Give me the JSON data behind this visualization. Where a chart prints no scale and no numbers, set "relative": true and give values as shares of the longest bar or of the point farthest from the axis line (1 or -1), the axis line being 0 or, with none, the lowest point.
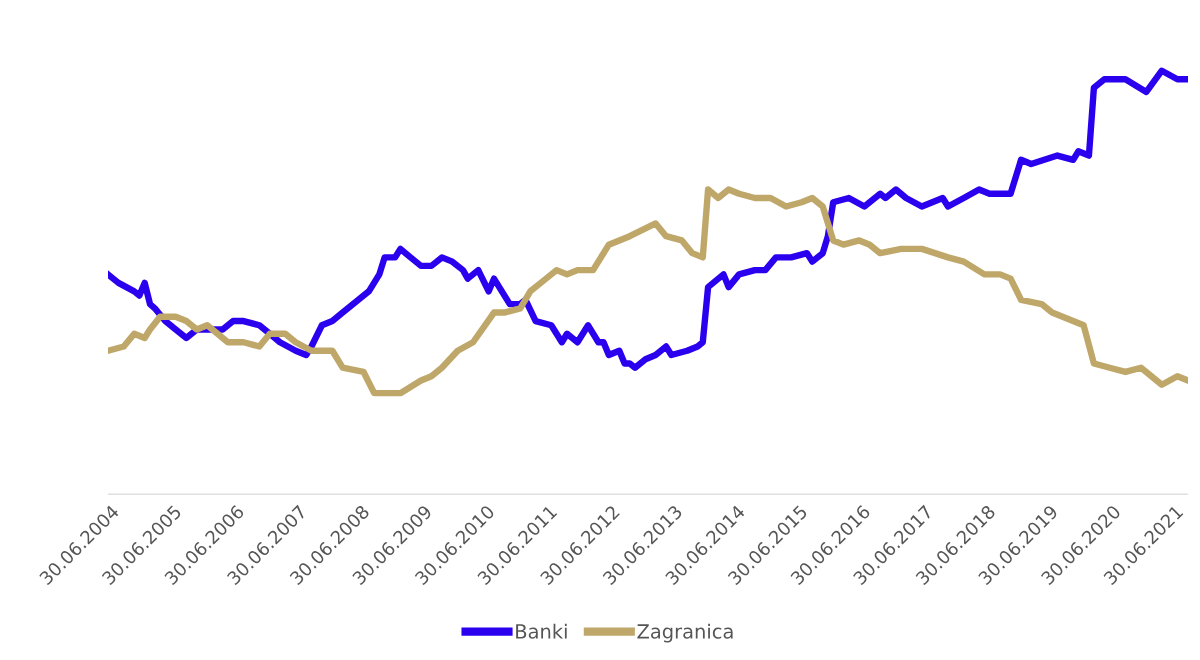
{
  "chart_data": {
    "type": "line",
    "relative": true,
    "legend": "bottom",
    "line_style": "solid",
    "marker": "none",
    "xlim": [
      "2004-06",
      "2021-09"
    ],
    "xticks": [
      {
        "value": "2004-06-30",
        "label": "30.06.2004"
      },
      {
        "value": "2005-06-30",
        "label": "30.06.2005"
      },
      {
        "value": "2006-06-30",
        "label": "30.06.2006"
      },
      {
        "value": "2007-06-30",
        "label": "30.06.2007"
      },
      {
        "value": "2008-06-30",
        "label": "30.06.2008"
      },
      {
        "value": "2009-06-30",
        "label": "30.06.2009"
      },
      {
        "value": "2010-06-30",
        "label": "30.06.2010"
      },
      {
        "value": "2011-06-30",
        "label": "30.06.2011"
      },
      {
        "value": "2012-06-30",
        "label": "30.06.2012"
      },
      {
        "value": "2013-06-30",
        "label": "30.06.2013"
      },
      {
        "value": "2014-06-30",
        "label": "30.06.2014"
      },
      {
        "value": "2015-06-30",
        "label": "30.06.2015"
      },
      {
        "value": "2016-06-30",
        "label": "30.06.2016"
      },
      {
        "value": "2017-06-30",
        "label": "30.06.2017"
      },
      {
        "value": "2018-06-30",
        "label": "30.06.2018"
      },
      {
        "value": "2019-06-30",
        "label": "30.06.2019"
      },
      {
        "value": "2020-06-30",
        "label": "30.06.2020"
      },
      {
        "value": "2021-06-30",
        "label": "30.06.2021"
      }
    ],
    "series": [
      {
        "name": "Banki",
        "color": "#2a00ee",
        "x": [
          "2004-06",
          "2004-08",
          "2004-11",
          "2004-12",
          "2005-01",
          "2005-02",
          "2005-03",
          "2005-05",
          "2005-07",
          "2005-09",
          "2005-11",
          "2006-01",
          "2006-04",
          "2006-06",
          "2006-08",
          "2006-11",
          "2007-01",
          "2007-03",
          "2007-06",
          "2007-08",
          "2007-09",
          "2007-11",
          "2008-01",
          "2008-03",
          "2008-06",
          "2008-08",
          "2008-10",
          "2008-11",
          "2009-01",
          "2009-02",
          "2009-04",
          "2009-06",
          "2009-08",
          "2009-10",
          "2009-12",
          "2010-02",
          "2010-03",
          "2010-05",
          "2010-07",
          "2010-08",
          "2010-11",
          "2011-01",
          "2011-02",
          "2011-04",
          "2011-07",
          "2011-09",
          "2011-10",
          "2011-12",
          "2012-02",
          "2012-04",
          "2012-05",
          "2012-06",
          "2012-08",
          "2012-09",
          "2012-10",
          "2012-11",
          "2013-01",
          "2013-03",
          "2013-05",
          "2013-06",
          "2013-09",
          "2013-11",
          "2013-12",
          "2014-01",
          "2014-04",
          "2014-05",
          "2014-07",
          "2014-10",
          "2014-12",
          "2015-02",
          "2015-05",
          "2015-08",
          "2015-09",
          "2015-11",
          "2015-12",
          "2016-01",
          "2016-04",
          "2016-07",
          "2016-10",
          "2016-11",
          "2017-01",
          "2017-03",
          "2017-06",
          "2017-10",
          "2017-11",
          "2018-02",
          "2018-05",
          "2018-07",
          "2018-11",
          "2019-01",
          "2019-03",
          "2019-08",
          "2019-11",
          "2019-12",
          "2020-02",
          "2020-03",
          "2020-05",
          "2020-09",
          "2021-01",
          "2021-04",
          "2021-07",
          "2021-09"
        ],
        "values": [
          0.52,
          0.5,
          0.48,
          0.47,
          0.5,
          0.45,
          0.44,
          0.41,
          0.39,
          0.37,
          0.39,
          0.39,
          0.39,
          0.41,
          0.41,
          0.4,
          0.38,
          0.36,
          0.34,
          0.33,
          0.35,
          0.4,
          0.41,
          0.43,
          0.46,
          0.48,
          0.52,
          0.56,
          0.56,
          0.58,
          0.56,
          0.54,
          0.54,
          0.56,
          0.55,
          0.53,
          0.51,
          0.53,
          0.48,
          0.51,
          0.45,
          0.45,
          0.46,
          0.41,
          0.4,
          0.36,
          0.38,
          0.36,
          0.4,
          0.36,
          0.36,
          0.33,
          0.34,
          0.31,
          0.31,
          0.3,
          0.32,
          0.33,
          0.35,
          0.33,
          0.34,
          0.35,
          0.36,
          0.49,
          0.52,
          0.49,
          0.52,
          0.53,
          0.53,
          0.56,
          0.56,
          0.57,
          0.55,
          0.57,
          0.61,
          0.69,
          0.7,
          0.68,
          0.71,
          0.7,
          0.72,
          0.7,
          0.68,
          0.7,
          0.68,
          0.7,
          0.72,
          0.71,
          0.71,
          0.79,
          0.78,
          0.8,
          0.79,
          0.81,
          0.8,
          0.96,
          0.98,
          0.98,
          0.95,
          1,
          0.98,
          0.98
        ]
      },
      {
        "name": "Zagranica",
        "color": "#bfa76a",
        "x": [
          "2004-06",
          "2004-09",
          "2004-11",
          "2005-01",
          "2005-02",
          "2005-04",
          "2005-07",
          "2005-09",
          "2005-11",
          "2006-01",
          "2006-05",
          "2006-08",
          "2006-11",
          "2007-01",
          "2007-04",
          "2007-06",
          "2007-09",
          "2008-01",
          "2008-03",
          "2008-07",
          "2008-09",
          "2008-12",
          "2009-02",
          "2009-06",
          "2009-08",
          "2009-10",
          "2010-01",
          "2010-04",
          "2010-08",
          "2010-10",
          "2011-01",
          "2011-03",
          "2011-05",
          "2011-08",
          "2011-10",
          "2011-12",
          "2012-03",
          "2012-06",
          "2012-10",
          "2013-03",
          "2013-05",
          "2013-08",
          "2013-10",
          "2013-12",
          "2014-01",
          "2014-03",
          "2014-05",
          "2014-07",
          "2014-10",
          "2015-01",
          "2015-04",
          "2015-07",
          "2015-09",
          "2015-11",
          "2016-01",
          "2016-03",
          "2016-06",
          "2016-08",
          "2016-10",
          "2017-02",
          "2017-06",
          "2017-11",
          "2018-02",
          "2018-06",
          "2018-09",
          "2018-11",
          "2019-01",
          "2019-05",
          "2019-07",
          "2019-11",
          "2020-01",
          "2020-03",
          "2020-06",
          "2020-09",
          "2020-12",
          "2021-04",
          "2021-07",
          "2021-09"
        ],
        "values": [
          0.34,
          0.35,
          0.38,
          0.37,
          0.39,
          0.42,
          0.42,
          0.41,
          0.39,
          0.4,
          0.36,
          0.36,
          0.35,
          0.38,
          0.38,
          0.36,
          0.34,
          0.34,
          0.3,
          0.29,
          0.24,
          0.24,
          0.24,
          0.27,
          0.28,
          0.3,
          0.34,
          0.36,
          0.43,
          0.43,
          0.44,
          0.48,
          0.5,
          0.53,
          0.52,
          0.53,
          0.53,
          0.59,
          0.61,
          0.64,
          0.61,
          0.6,
          0.57,
          0.56,
          0.72,
          0.7,
          0.72,
          0.71,
          0.7,
          0.7,
          0.68,
          0.69,
          0.7,
          0.68,
          0.6,
          0.59,
          0.6,
          0.59,
          0.57,
          0.58,
          0.58,
          0.56,
          0.55,
          0.52,
          0.52,
          0.51,
          0.46,
          0.45,
          0.43,
          0.41,
          0.4,
          0.31,
          0.3,
          0.29,
          0.3,
          0.26,
          0.28,
          0.27
        ]
      }
    ]
  }
}
